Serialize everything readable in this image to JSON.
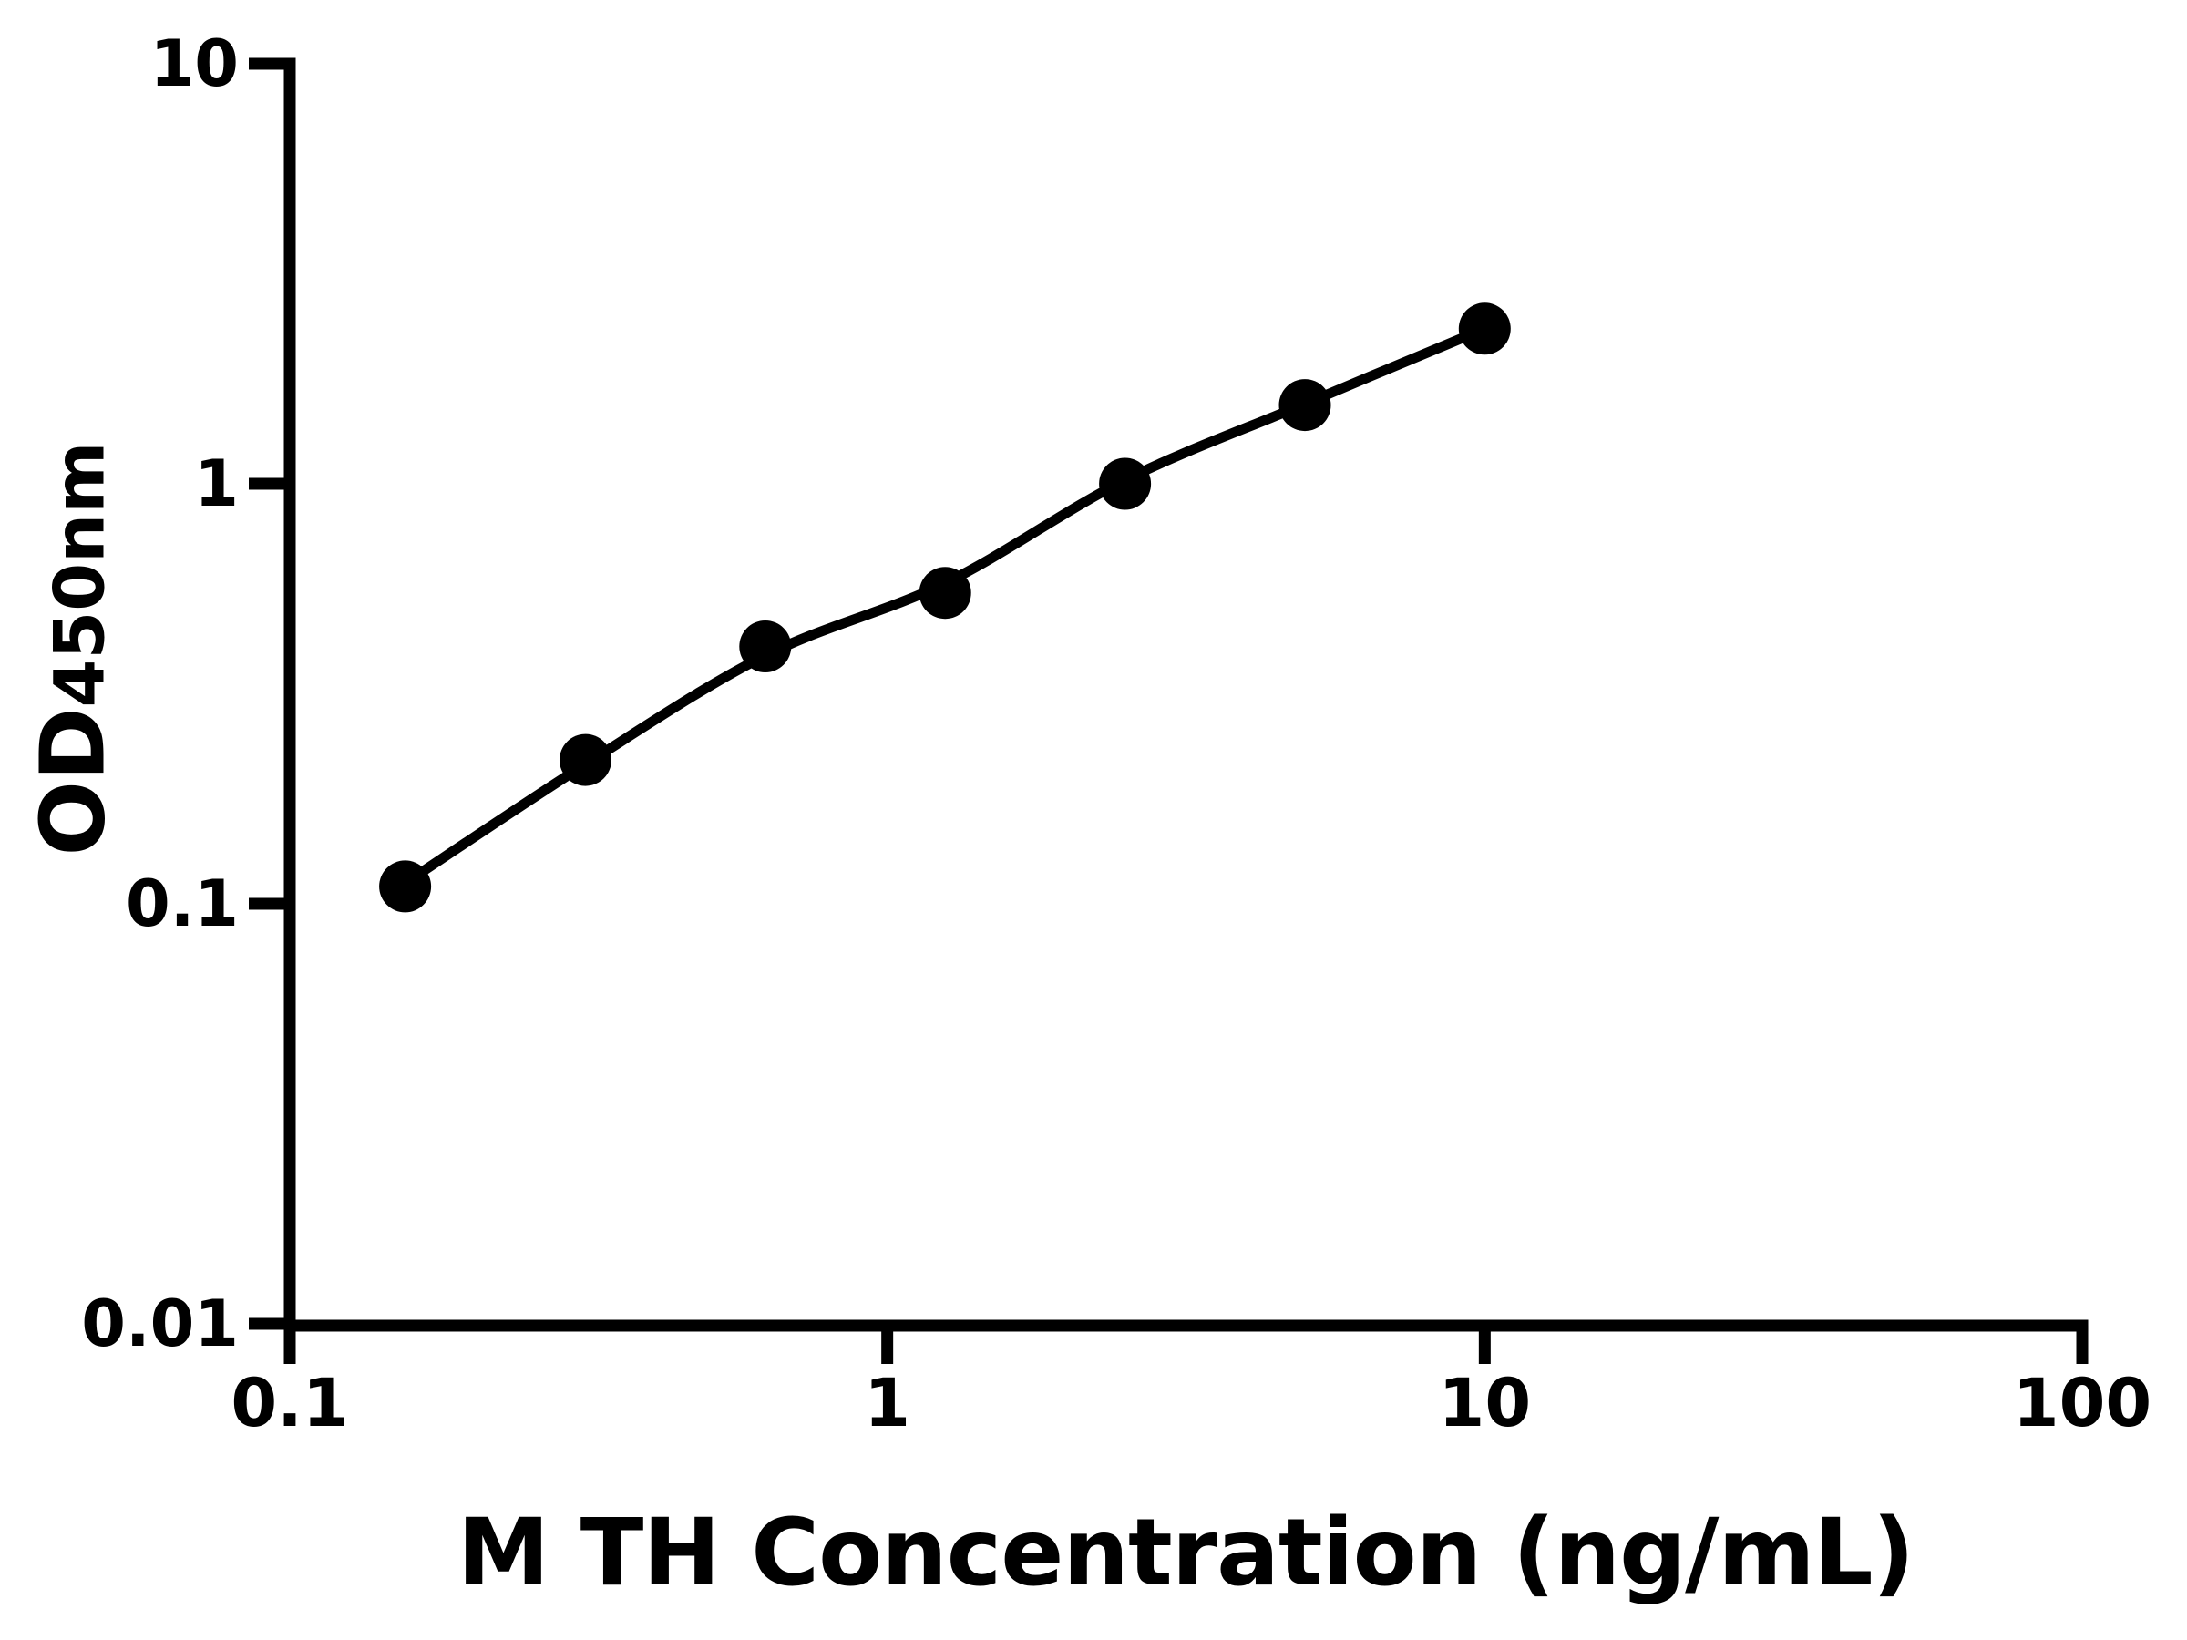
{
  "chart_data": {
    "type": "scatter",
    "subtype": "standard-curve-with-fit-line",
    "title": "",
    "xlabel": "M TH Concentration (ng/mL)",
    "ylabel": "OD450nm",
    "ylabel_main": "OD",
    "ylabel_sub": "450nm",
    "x_scale": "log",
    "y_scale": "log",
    "xlim": [
      0.1,
      100
    ],
    "ylim": [
      0.01,
      10
    ],
    "x_ticks": [
      "0.1",
      "1",
      "10",
      "100"
    ],
    "y_ticks": [
      "10",
      "1",
      "0.1",
      "0.01"
    ],
    "grid": false,
    "legend_position": "none",
    "marker": "filled-circle",
    "series_color": "#000000",
    "background_color": "#ffffff",
    "points": [
      {
        "x": 0.156,
        "y": 0.11
      },
      {
        "x": 0.3125,
        "y": 0.22
      },
      {
        "x": 0.625,
        "y": 0.41
      },
      {
        "x": 1.25,
        "y": 0.55
      },
      {
        "x": 2.5,
        "y": 1.0
      },
      {
        "x": 5,
        "y": 1.54
      },
      {
        "x": 10,
        "y": 2.34
      }
    ],
    "fit_curve": [
      {
        "x": 0.156,
        "y": 0.112
      },
      {
        "x": 0.3125,
        "y": 0.215
      },
      {
        "x": 0.625,
        "y": 0.39
      },
      {
        "x": 1.25,
        "y": 0.58
      },
      {
        "x": 2.5,
        "y": 1.02
      },
      {
        "x": 5,
        "y": 1.55
      },
      {
        "x": 10,
        "y": 2.34
      }
    ]
  }
}
